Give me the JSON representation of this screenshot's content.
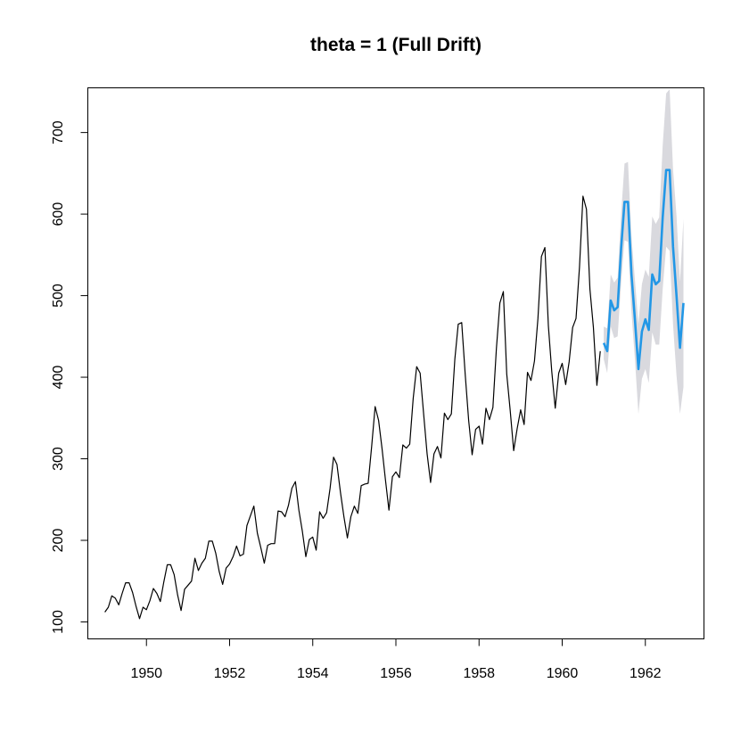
{
  "chart_data": {
    "type": "line",
    "title": "theta = 1 (Full Drift)",
    "xlabel": "",
    "ylabel": "",
    "xlim": [
      1948.59,
      1963.41
    ],
    "ylim": [
      79.2,
      754.8
    ],
    "x_ticks": [
      1950,
      1952,
      1954,
      1956,
      1958,
      1960,
      1962
    ],
    "x_tick_labels": [
      "1950",
      "1952",
      "1954",
      "1956",
      "1958",
      "1960",
      "1962"
    ],
    "y_ticks": [
      100,
      200,
      300,
      400,
      500,
      600,
      700
    ],
    "y_tick_labels": [
      "100",
      "200",
      "300",
      "400",
      "500",
      "600",
      "700"
    ],
    "grid": false,
    "legend": "none",
    "start_year": 1949,
    "frequency": 12,
    "observed": {
      "name": "",
      "color": "#000000",
      "values": [
        112,
        118,
        132,
        129,
        121,
        135,
        148,
        148,
        136,
        119,
        104,
        118,
        115,
        126,
        141,
        135,
        125,
        149,
        170,
        170,
        158,
        133,
        114,
        140,
        145,
        150,
        178,
        163,
        172,
        178,
        199,
        199,
        184,
        162,
        146,
        166,
        171,
        180,
        193,
        181,
        183,
        218,
        230,
        242,
        209,
        191,
        172,
        194,
        196,
        196,
        236,
        235,
        229,
        243,
        264,
        272,
        237,
        211,
        180,
        201,
        204,
        188,
        235,
        227,
        234,
        264,
        302,
        293,
        259,
        229,
        203,
        229,
        242,
        233,
        267,
        269,
        270,
        315,
        364,
        347,
        312,
        274,
        237,
        278,
        284,
        277,
        317,
        313,
        318,
        374,
        413,
        405,
        355,
        306,
        271,
        306,
        315,
        301,
        356,
        348,
        355,
        422,
        465,
        467,
        404,
        347,
        305,
        336,
        340,
        318,
        362,
        348,
        363,
        435,
        491,
        505,
        404,
        359,
        310,
        337,
        360,
        342,
        406,
        396,
        420,
        472,
        548,
        559,
        463,
        407,
        362,
        405,
        417,
        391,
        419,
        461,
        472,
        535,
        622,
        606,
        508,
        461,
        390,
        432
      ]
    },
    "forecast": {
      "name": "",
      "color": "#2297e6",
      "start": 1961.0,
      "values": [
        442,
        432,
        494,
        482,
        486,
        558,
        615,
        615,
        526,
        470,
        410,
        456,
        471,
        458,
        526,
        514,
        518,
        596,
        654,
        654,
        560,
        500,
        436,
        491
      ],
      "interval_color": "#d9d9de",
      "lower": [
        422,
        405,
        462,
        448,
        450,
        516,
        568,
        566,
        480,
        421,
        355,
        398,
        410,
        393,
        455,
        440,
        440,
        508,
        560,
        555,
        465,
        402,
        355,
        388
      ],
      "upper": [
        462,
        460,
        526,
        516,
        522,
        600,
        662,
        664,
        572,
        519,
        465,
        514,
        532,
        523,
        597,
        588,
        596,
        684,
        748,
        753,
        655,
        598,
        517,
        594
      ]
    }
  }
}
